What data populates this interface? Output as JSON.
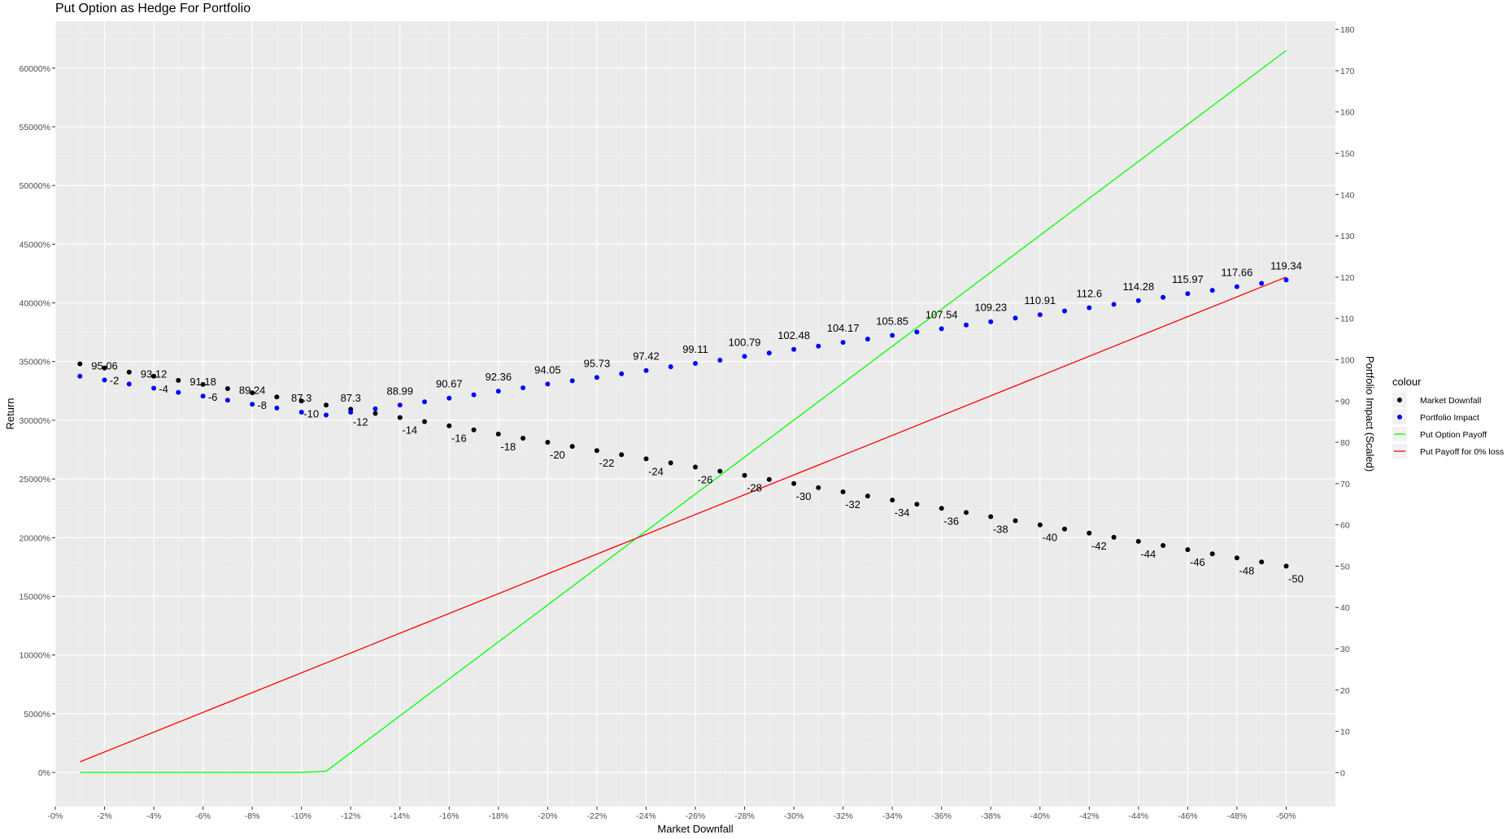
{
  "chart_data": {
    "type": "line",
    "title": "Put Option as Hedge For Portfolio",
    "xlabel": "Market Downfall",
    "ylabel": "Return",
    "y2label": "Portfolio Impact (Scaled)",
    "xlim": [
      0,
      -52
    ],
    "ylim": [
      -2900,
      64000
    ],
    "y2lim": [
      -8.2,
      182
    ],
    "x_ticks": [
      0,
      -2,
      -4,
      -6,
      -8,
      -10,
      -12,
      -14,
      -16,
      -18,
      -20,
      -22,
      -24,
      -26,
      -28,
      -30,
      -32,
      -34,
      -36,
      -38,
      -40,
      -42,
      -44,
      -46,
      -48,
      -50
    ],
    "x_tick_labels": [
      "-0%",
      "-2%",
      "-4%",
      "-6%",
      "-8%",
      "-10%",
      "-12%",
      "-14%",
      "-16%",
      "-18%",
      "-20%",
      "-22%",
      "-24%",
      "-26%",
      "-28%",
      "-30%",
      "-32%",
      "-34%",
      "-36%",
      "-38%",
      "-40%",
      "-42%",
      "-44%",
      "-46%",
      "-48%",
      "-50%"
    ],
    "y_ticks": [
      0,
      5000,
      10000,
      15000,
      20000,
      25000,
      30000,
      35000,
      40000,
      45000,
      50000,
      55000,
      60000
    ],
    "y_tick_labels": [
      "0%",
      "5000%",
      "10000%",
      "15000%",
      "20000%",
      "25000%",
      "30000%",
      "35000%",
      "40000%",
      "45000%",
      "50000%",
      "55000%",
      "60000%"
    ],
    "y2_ticks": [
      0,
      10,
      20,
      30,
      40,
      50,
      60,
      70,
      80,
      90,
      100,
      110,
      120,
      130,
      140,
      150,
      160,
      170,
      180
    ],
    "y2_tick_labels": [
      "0",
      "10",
      "20",
      "30",
      "40",
      "50",
      "60",
      "70",
      "80",
      "90",
      "100",
      "110",
      "120",
      "130",
      "140",
      "150",
      "160",
      "170",
      "180"
    ],
    "grid": true,
    "legend": {
      "title": "colour",
      "position": "right"
    },
    "series": [
      {
        "name": "Market Downfall",
        "kind": "points",
        "axis": "right",
        "color": "#000000",
        "x": [
          -1,
          -2,
          -3,
          -4,
          -5,
          -6,
          -7,
          -8,
          -9,
          -10,
          -11,
          -12,
          -13,
          -14,
          -15,
          -16,
          -17,
          -18,
          -19,
          -20,
          -21,
          -22,
          -23,
          -24,
          -25,
          -26,
          -27,
          -28,
          -29,
          -30,
          -31,
          -32,
          -33,
          -34,
          -35,
          -36,
          -37,
          -38,
          -39,
          -40,
          -41,
          -42,
          -43,
          -44,
          -45,
          -46,
          -47,
          -48,
          -49,
          -50
        ],
        "values": [
          99,
          98,
          97,
          96,
          95,
          94,
          93,
          92,
          91,
          90,
          89,
          88,
          87,
          86,
          85,
          84,
          83,
          82,
          81,
          80,
          79,
          78,
          77,
          76,
          75,
          74,
          73,
          72,
          71,
          70,
          69,
          68,
          67,
          66,
          65,
          64,
          63,
          62,
          61,
          60,
          59,
          58,
          57,
          56,
          55,
          54,
          53,
          52,
          51,
          50
        ],
        "labels_x": [
          -2,
          -4,
          -6,
          -8,
          -10,
          -12,
          -14,
          -16,
          -18,
          -20,
          -22,
          -24,
          -26,
          -28,
          -30,
          -32,
          -34,
          -36,
          -38,
          -40,
          -42,
          -44,
          -46,
          -48,
          -50
        ],
        "labels": [
          "-2",
          "-4",
          "-6",
          "-8",
          "-10",
          "-12",
          "-14",
          "-16",
          "-18",
          "-20",
          "-22",
          "-24",
          "-26",
          "-28",
          "-30",
          "-32",
          "-34",
          "-36",
          "-38",
          "-40",
          "-42",
          "-44",
          "-46",
          "-48",
          "-50"
        ]
      },
      {
        "name": "Portfolio Impact",
        "kind": "points",
        "axis": "right",
        "color": "#0000ff",
        "x": [
          -1,
          -2,
          -3,
          -4,
          -5,
          -6,
          -7,
          -8,
          -9,
          -10,
          -11,
          -12,
          -13,
          -14,
          -15,
          -16,
          -17,
          -18,
          -19,
          -20,
          -21,
          -22,
          -23,
          -24,
          -25,
          -26,
          -27,
          -28,
          -29,
          -30,
          -31,
          -32,
          -33,
          -34,
          -35,
          -36,
          -37,
          -38,
          -39,
          -40,
          -41,
          -42,
          -43,
          -44,
          -45,
          -46,
          -47,
          -48,
          -49,
          -50
        ],
        "values": [
          96.0,
          95.1,
          94.1,
          93.1,
          92.1,
          91.2,
          90.2,
          89.2,
          88.3,
          87.3,
          86.6,
          87.3,
          88.1,
          89.0,
          89.8,
          90.7,
          91.5,
          92.4,
          93.2,
          94.1,
          94.9,
          95.7,
          96.6,
          97.4,
          98.3,
          99.1,
          99.9,
          100.8,
          101.6,
          102.5,
          103.3,
          104.2,
          105.0,
          105.9,
          106.7,
          107.5,
          108.4,
          109.2,
          110.1,
          110.9,
          111.8,
          112.6,
          113.4,
          114.3,
          115.1,
          116.0,
          116.8,
          117.7,
          118.5,
          119.3
        ],
        "labels_x": [
          -2,
          -4,
          -6,
          -8,
          -10,
          -12,
          -14,
          -16,
          -18,
          -20,
          -22,
          -24,
          -26,
          -28,
          -30,
          -32,
          -34,
          -36,
          -38,
          -40,
          -42,
          -44,
          -46,
          -48,
          -50
        ],
        "labels": [
          "95.06",
          "93.12",
          "91.18",
          "89.24",
          "87.3",
          "87.3",
          "88.99",
          "90.67",
          "92.36",
          "94.05",
          "95.73",
          "97.42",
          "99.11",
          "100.79",
          "102.48",
          "104.17",
          "105.85",
          "107.54",
          "109.23",
          "110.91",
          "112.6",
          "114.28",
          "115.97",
          "117.66",
          "119.34"
        ]
      },
      {
        "name": "Put Option Payoff",
        "kind": "line",
        "axis": "left",
        "color": "#00ff00",
        "x": [
          -1,
          -10,
          -11,
          -50
        ],
        "values": [
          0,
          0,
          100,
          61500
        ]
      },
      {
        "name": "Put Payoff for 0% loss",
        "kind": "line",
        "axis": "left",
        "color": "#ff0000",
        "x": [
          -1,
          -50
        ],
        "values": [
          900,
          42200
        ]
      }
    ]
  }
}
